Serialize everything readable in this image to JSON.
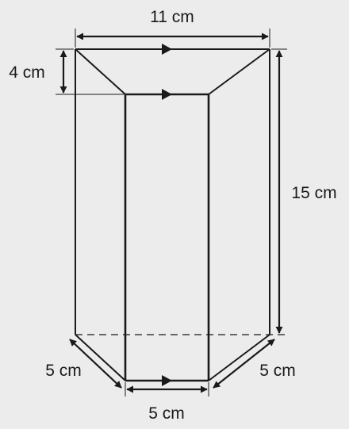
{
  "diagram": {
    "labels": {
      "top_width": "11 cm",
      "top_depth": "4 cm",
      "height": "15 cm",
      "bottom_left": "5 cm",
      "bottom_middle": "5 cm",
      "bottom_right": "5 cm"
    },
    "colors": {
      "background": "#ececec",
      "lines": "#1a1a1a"
    }
  }
}
